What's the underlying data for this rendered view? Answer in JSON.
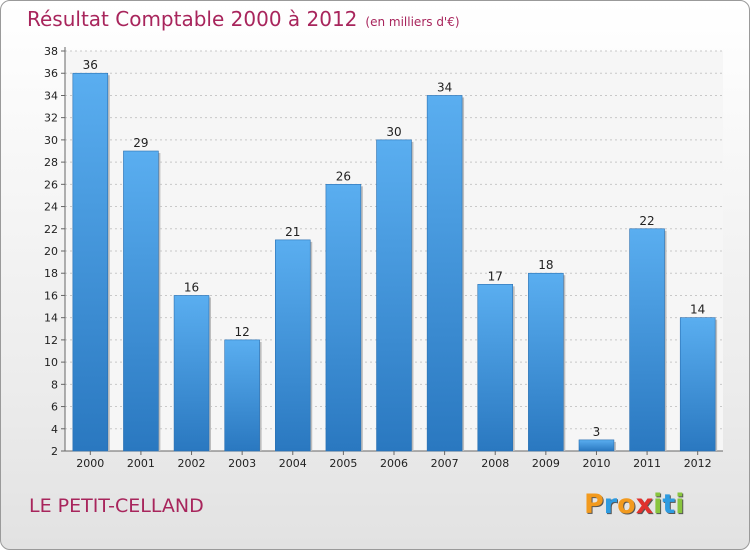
{
  "chart_data": {
    "type": "bar",
    "title": "Résultat Comptable 2000 à 2012",
    "subtitle": "(en milliers d'€)",
    "categories": [
      "2000",
      "2001",
      "2002",
      "2003",
      "2004",
      "2005",
      "2006",
      "2007",
      "2008",
      "2009",
      "2010",
      "2011",
      "2012"
    ],
    "values": [
      36,
      29,
      16,
      12,
      21,
      26,
      30,
      34,
      17,
      18,
      3,
      22,
      14
    ],
    "ylim": [
      2,
      38
    ],
    "yticks": [
      2,
      4,
      6,
      8,
      10,
      12,
      14,
      16,
      18,
      20,
      22,
      24,
      26,
      28,
      30,
      32,
      34,
      36,
      38
    ],
    "xlabel": "",
    "ylabel": "",
    "grid": true,
    "bar_color": "#3d8fd6"
  },
  "commune": "LE PETIT-CELLAND",
  "logo": {
    "letters": [
      "P",
      "r",
      "o",
      "x",
      "i",
      "t",
      "i"
    ],
    "colors": [
      "#f29a1e",
      "#2e9be0",
      "#f29a1e",
      "#e0322e",
      "#89c53f",
      "#2e9be0",
      "#89c53f"
    ]
  }
}
